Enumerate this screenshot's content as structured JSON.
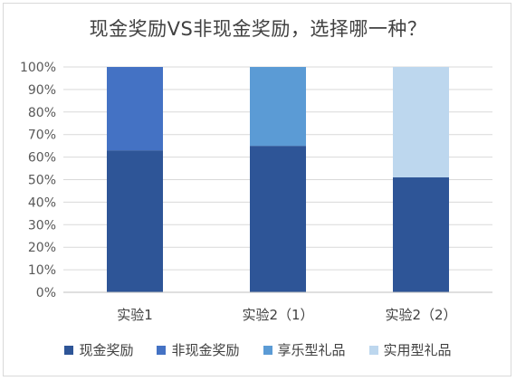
{
  "chart_data": {
    "type": "bar",
    "stacked": true,
    "title": "现金奖励VS非现金奖励，选择哪一种？",
    "categories": [
      "实验1",
      "实验2（1）",
      "实验2（2）"
    ],
    "ylim": [
      0,
      100
    ],
    "yticks": [
      "0%",
      "10%",
      "20%",
      "30%",
      "40%",
      "50%",
      "60%",
      "70%",
      "80%",
      "90%",
      "100%"
    ],
    "grid": true,
    "legend_position": "bottom",
    "series": [
      {
        "name": "现金奖励",
        "color": "#2e5597",
        "values": [
          63,
          65,
          51
        ]
      },
      {
        "name": "非现金奖励",
        "color": "#4472c4",
        "values": [
          37,
          null,
          null
        ]
      },
      {
        "name": "享乐型礼品",
        "color": "#5b9bd5",
        "values": [
          null,
          35,
          null
        ]
      },
      {
        "name": "实用型礼品",
        "color": "#bdd7ee",
        "values": [
          null,
          null,
          49
        ]
      }
    ]
  }
}
